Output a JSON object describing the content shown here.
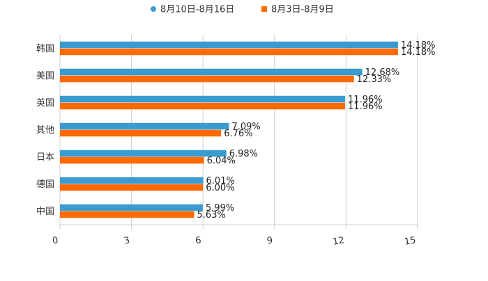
{
  "chart_data": {
    "type": "bar",
    "orientation": "horizontal",
    "categories": [
      "韩国",
      "美国",
      "英国",
      "其他",
      "日本",
      "德国",
      "中国"
    ],
    "series": [
      {
        "name": "8月10日-8月16日",
        "color": "#3a9bd0",
        "values": [
          14.18,
          12.68,
          11.96,
          7.09,
          6.98,
          6.01,
          5.99
        ],
        "labels": [
          "14.18%",
          "12.68%",
          "11.96%",
          "7.09%",
          "6.98%",
          "6.01%",
          "5.99%"
        ]
      },
      {
        "name": "8月3日-8月9日",
        "color": "#ff6a00",
        "values": [
          14.18,
          12.33,
          11.96,
          6.76,
          6.04,
          6.0,
          5.63
        ],
        "labels": [
          "14.18%",
          "12.33%",
          "11.96%",
          "6.76%",
          "6.04%",
          "6.00%",
          "5.63%"
        ]
      }
    ],
    "xlim": [
      0,
      15
    ],
    "xticks": [
      0,
      3,
      6,
      9,
      12,
      15
    ],
    "xtick_labels": [
      "0",
      "3",
      "6",
      "9",
      "12",
      "15"
    ],
    "grid": true,
    "legend_position": "top-center"
  }
}
